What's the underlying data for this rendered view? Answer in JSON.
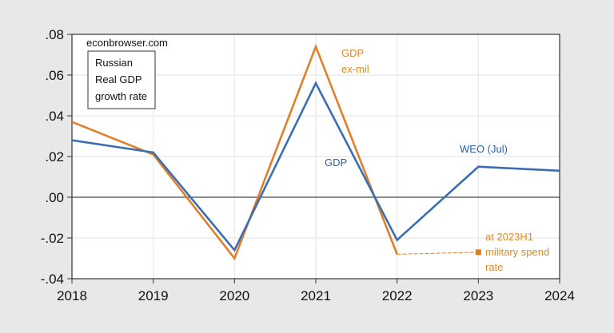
{
  "chart_data": {
    "type": "line",
    "title": "Russian Real GDP growth rate",
    "source_label": "econbrowser.com",
    "legend_box": [
      "Russian",
      "Real GDP",
      "growth rate"
    ],
    "xlabel": "",
    "ylabel": "",
    "x": [
      2018,
      2019,
      2020,
      2021,
      2022,
      2023,
      2024
    ],
    "xticks": [
      "2018",
      "2019",
      "2020",
      "2021",
      "2022",
      "2023",
      "2024"
    ],
    "yticks": [
      ".08",
      ".06",
      ".04",
      ".02",
      ".00",
      "-.02",
      "-.04"
    ],
    "ylim": [
      -0.04,
      0.08
    ],
    "grid": true,
    "series": [
      {
        "name": "GDP",
        "color": "#3b6db5",
        "x": [
          2018,
          2019,
          2020,
          2021,
          2022,
          2023,
          2024
        ],
        "values": [
          0.028,
          0.022,
          -0.026,
          0.056,
          -0.021,
          0.015,
          0.013
        ]
      },
      {
        "name": "GDP ex-mil",
        "color": "#e07f2a",
        "x": [
          2018,
          2019,
          2020,
          2021,
          2022
        ],
        "values": [
          0.037,
          0.021,
          -0.03,
          0.074,
          -0.028
        ]
      },
      {
        "name": "GDP ex-mil at 2023H1 military spend rate",
        "color": "#e07f2a",
        "style": "dashed",
        "x": [
          2022,
          2023
        ],
        "values": [
          -0.028,
          -0.027
        ],
        "marker": "square"
      }
    ],
    "annotations": [
      {
        "text_lines": [
          "GDP",
          "ex-mil"
        ],
        "color": "#d98b2b"
      },
      {
        "text_lines": [
          "GDP"
        ],
        "color": "#2f5fa8"
      },
      {
        "text_lines": [
          "WEO (Jul)"
        ],
        "color": "#2f5fa8"
      },
      {
        "text_lines": [
          "at 2023H1",
          "military spend",
          "rate"
        ],
        "color": "#d98b2b"
      }
    ]
  }
}
